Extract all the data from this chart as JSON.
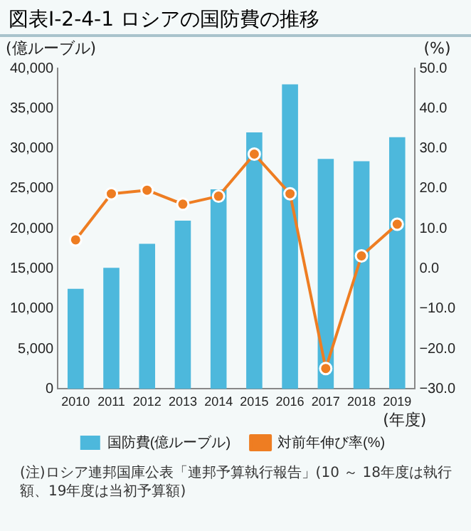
{
  "chart_data": {
    "type": "bar",
    "title": "図表Ⅰ-2-4-1 ロシアの国防費の推移",
    "xlabel": "(年度)",
    "ylabel": "(億ルーブル)",
    "y2label": "(%)",
    "categories": [
      "2010",
      "2011",
      "2012",
      "2013",
      "2014",
      "2015",
      "2016",
      "2017",
      "2018",
      "2019"
    ],
    "series": [
      {
        "name": "国防費(億ルーブル)",
        "color": "#4db8dc",
        "values": [
          12500,
          15100,
          18100,
          21000,
          24900,
          32000,
          38000,
          28700,
          28400,
          31400
        ]
      },
      {
        "name": "対前年伸び率(%)",
        "type": "line",
        "axis": "y2",
        "color": "#ee7d22",
        "marker": "circle",
        "values": [
          7.2,
          18.7,
          19.6,
          16.1,
          18.1,
          28.6,
          18.7,
          -24.9,
          3.2,
          11.1
        ]
      }
    ],
    "ylim": [
      0,
      40000
    ],
    "yticks": [
      {
        "value": 0,
        "label": "0"
      },
      {
        "value": 5000,
        "label": "5,000"
      },
      {
        "value": 10000,
        "label": "10,000"
      },
      {
        "value": 15000,
        "label": "15,000"
      },
      {
        "value": 20000,
        "label": "20,000"
      },
      {
        "value": 25000,
        "label": "25,000"
      },
      {
        "value": 30000,
        "label": "30,000"
      },
      {
        "value": 35000,
        "label": "35,000"
      },
      {
        "value": 40000,
        "label": "40,000"
      }
    ],
    "y2lim": [
      -30,
      50
    ],
    "y2ticks": [
      {
        "value": -30,
        "label": "−30.0"
      },
      {
        "value": -20,
        "label": "−20.0"
      },
      {
        "value": -10,
        "label": "−10.0"
      },
      {
        "value": 0,
        "label": "0.0"
      },
      {
        "value": 10,
        "label": "10.0"
      },
      {
        "value": 20,
        "label": "20.0"
      },
      {
        "value": 30,
        "label": "30.0"
      },
      {
        "value": 40,
        "label": "40.0"
      },
      {
        "value": 50,
        "label": "50.0"
      }
    ],
    "grid": false,
    "legend": "bottom",
    "annotations": [
      "(注)ロシア連邦国庫公表「連邦予算執行報告」(10 ～ 18年度は執行額、19年度は当初予算額)"
    ]
  }
}
